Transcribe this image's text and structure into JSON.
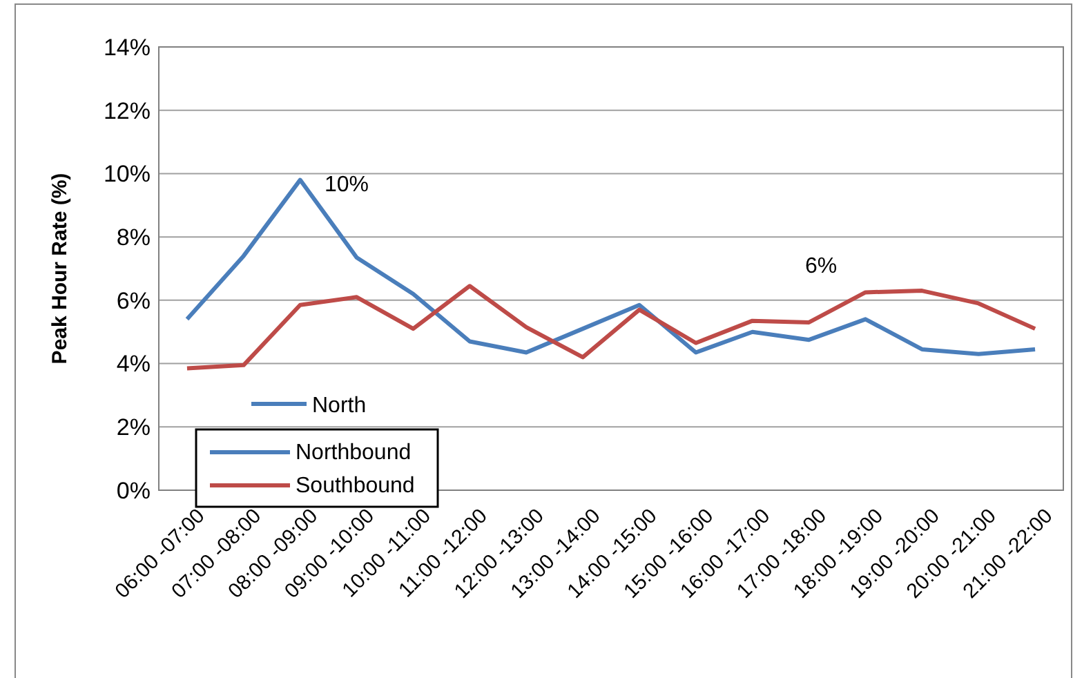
{
  "chart_data": {
    "type": "line",
    "ylabel": "Peak Hour Rate (%)",
    "categories": [
      "06:00 -07:00",
      "07:00 -08:00",
      "08:00 -09:00",
      "09:00 -10:00",
      "10:00 -11:00",
      "11:00 -12:00",
      "12:00 -13:00",
      "13:00 -14:00",
      "14:00 -15:00",
      "15:00 -16:00",
      "16:00 -17:00",
      "17:00 -18:00",
      "18:00 -19:00",
      "19:00 -20:00",
      "20:00 -21:00",
      "21:00 -22:00"
    ],
    "series": [
      {
        "name": "Northbound",
        "color": "#4a7ebb",
        "values": [
          5.4,
          7.4,
          9.8,
          7.35,
          6.2,
          4.7,
          4.35,
          5.1,
          5.85,
          4.35,
          5.0,
          4.75,
          5.4,
          4.45,
          4.3,
          4.45
        ]
      },
      {
        "name": "Southbound",
        "color": "#be4b48",
        "values": [
          3.85,
          3.95,
          5.85,
          6.1,
          5.1,
          6.45,
          5.15,
          4.2,
          5.7,
          4.65,
          5.35,
          5.3,
          6.25,
          6.3,
          5.9,
          5.1
        ]
      }
    ],
    "ylim": [
      0,
      14
    ],
    "yticks": [
      {
        "value": 0,
        "label": "0%"
      },
      {
        "value": 2,
        "label": "2%"
      },
      {
        "value": 4,
        "label": "4%"
      },
      {
        "value": 6,
        "label": "6%"
      },
      {
        "value": 8,
        "label": "8%"
      },
      {
        "value": 10,
        "label": "10%"
      },
      {
        "value": 12,
        "label": "12%"
      },
      {
        "value": 14,
        "label": "14%"
      }
    ],
    "grid": "y",
    "legend": "bottom left",
    "marker": "none",
    "line_style": "solid",
    "annotations": [
      "10%",
      "6%",
      "North"
    ]
  }
}
